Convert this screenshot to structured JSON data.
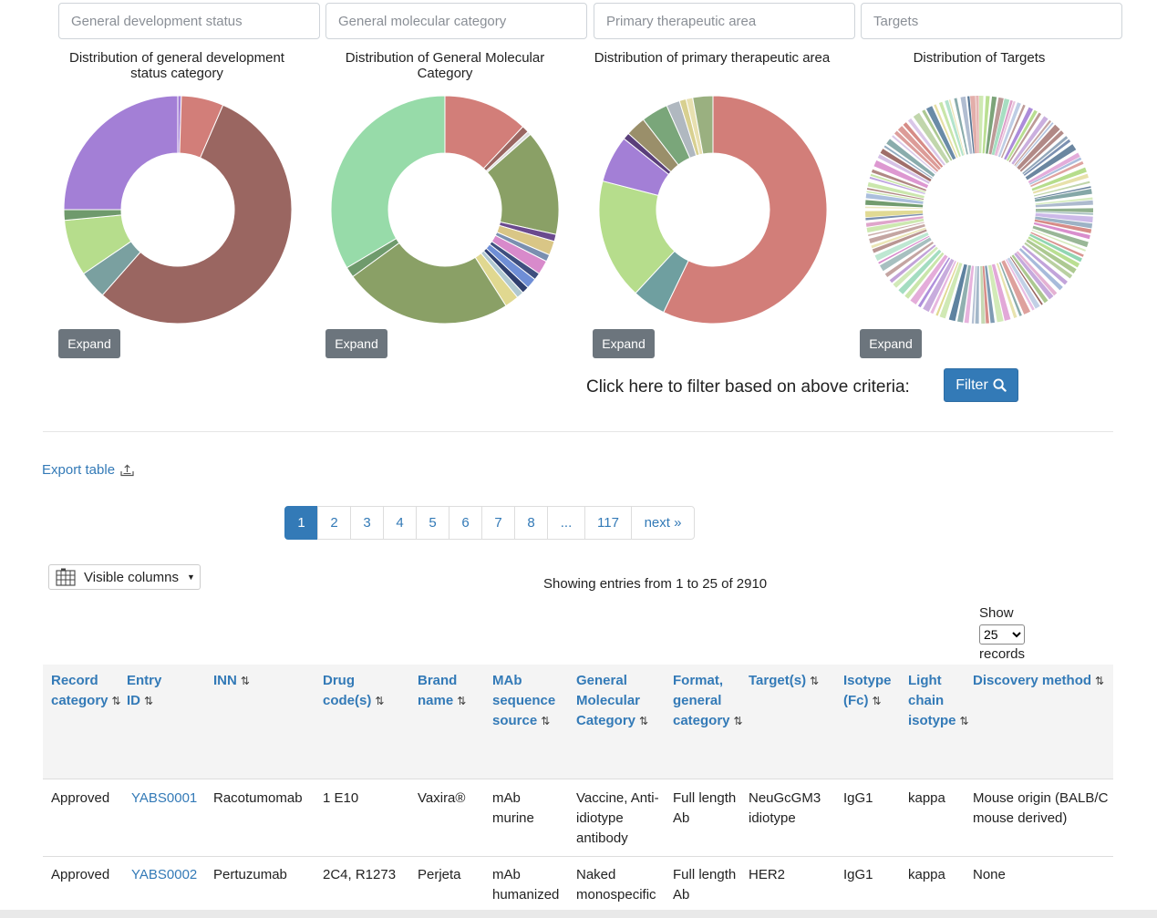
{
  "filters": {
    "dev_status_placeholder": "General development status",
    "mol_category_placeholder": "General molecular category",
    "therapeutic_placeholder": "Primary therapeutic area",
    "targets_placeholder": "Targets"
  },
  "charts": {
    "dev_status_title": "Distribution of general development status category",
    "mol_category_title": "Distribution of General Molecular Category",
    "therapeutic_title": "Distribution of primary therapeutic area",
    "targets_title": "Distribution of Targets",
    "expand_label": "Expand"
  },
  "chart_data": [
    {
      "type": "pie",
      "subtype": "donut",
      "title": "Distribution of general development status category",
      "values": [
        0.5,
        6,
        55,
        4,
        8,
        1.5,
        25
      ]
    },
    {
      "type": "pie",
      "subtype": "donut",
      "title": "Distribution of General Molecular Category",
      "values": [
        12,
        1,
        0.5,
        15,
        1,
        2,
        1,
        2,
        1,
        1.5,
        1,
        1,
        2,
        24,
        1.5,
        33.5
      ]
    },
    {
      "type": "pie",
      "subtype": "donut",
      "title": "Distribution of primary therapeutic area",
      "values": [
        60,
        5,
        18,
        7,
        1,
        3,
        4,
        2,
        1,
        1,
        3
      ]
    },
    {
      "type": "pie",
      "subtype": "donut",
      "title": "Distribution of Targets",
      "note": "many small slices"
    }
  ],
  "filter_bar": {
    "label": "Click here to filter based on above criteria:",
    "button_label": "Filter",
    "button_icon": "search-icon"
  },
  "export": {
    "label": "Export table",
    "icon": "export-icon"
  },
  "pagination": {
    "pages": [
      "1",
      "2",
      "3",
      "4",
      "5",
      "6",
      "7",
      "8",
      "...",
      "117",
      "next »"
    ],
    "active": "1"
  },
  "columns_button": {
    "label": "Visible columns",
    "icon": "columns-icon"
  },
  "showing_text": "Showing entries from 1 to 25 of 2910",
  "page_size": {
    "prefix": "Show",
    "value": "25",
    "suffix": "records"
  },
  "table": {
    "headers": {
      "record_category": "Record category",
      "entry_id": "Entry ID",
      "inn": "INN",
      "drug_code": "Drug code(s)",
      "brand_name": "Brand name",
      "mab_source": "MAb sequence source",
      "mol_category": "General Molecular Category",
      "format": "Format, general category",
      "targets": "Target(s)",
      "isotype": "Isotype (Fc)",
      "light_chain": "Light chain isotype",
      "discovery": "Discovery method"
    },
    "rows": [
      {
        "record_category": "Approved",
        "entry_id": "YABS0001",
        "inn": "Racotumomab",
        "drug_code": "1 E10",
        "brand_name": "Vaxira®",
        "mab_source": "mAb murine",
        "mol_category": "Vaccine, Anti-idiotype antibody",
        "format": "Full length Ab",
        "targets": "NeuGcGM3 idiotype",
        "isotype": "IgG1",
        "light_chain": "kappa",
        "discovery": "Mouse origin (BALB/C mouse derived)"
      },
      {
        "record_category": "Approved",
        "entry_id": "YABS0002",
        "inn": "Pertuzumab",
        "drug_code": "2C4, R1273",
        "brand_name": "Perjeta",
        "mab_source": "mAb humanized",
        "mol_category": "Naked monospecific",
        "format": "Full length Ab",
        "targets": "HER2",
        "isotype": "IgG1",
        "light_chain": "kappa",
        "discovery": "None"
      }
    ]
  }
}
